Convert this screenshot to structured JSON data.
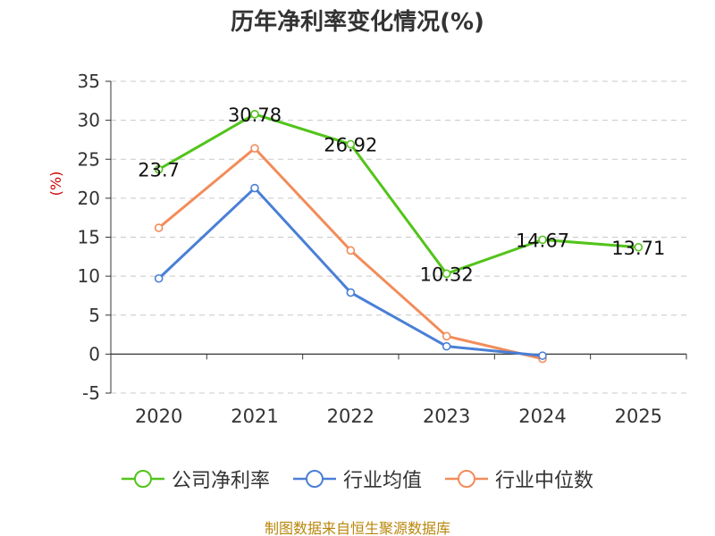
{
  "chart_data": {
    "type": "line",
    "title": "历年净利率变化情况(%)",
    "ylabel": "(%)",
    "categories": [
      "2020",
      "2021",
      "2022",
      "2023",
      "2024",
      "2025"
    ],
    "ylim": [
      -5,
      35
    ],
    "yticks": [
      -5,
      0,
      5,
      10,
      15,
      20,
      25,
      30,
      35
    ],
    "grid": true,
    "legend_position": "bottom",
    "series": [
      {
        "name": "公司净利率",
        "color": "#52c41a",
        "values": [
          23.7,
          30.78,
          26.92,
          10.32,
          14.67,
          13.71
        ],
        "labels": [
          "23.7",
          "30.78",
          "26.92",
          "10.32",
          "14.67",
          "13.71"
        ]
      },
      {
        "name": "行业均值",
        "color": "#4a7fd6",
        "values": [
          9.7,
          21.3,
          7.9,
          1.0,
          -0.2,
          null
        ]
      },
      {
        "name": "行业中位数",
        "color": "#f28c5a",
        "values": [
          16.2,
          26.4,
          13.3,
          2.3,
          -0.6,
          null
        ]
      }
    ]
  },
  "source_note": "制图数据来自恒生聚源数据库"
}
